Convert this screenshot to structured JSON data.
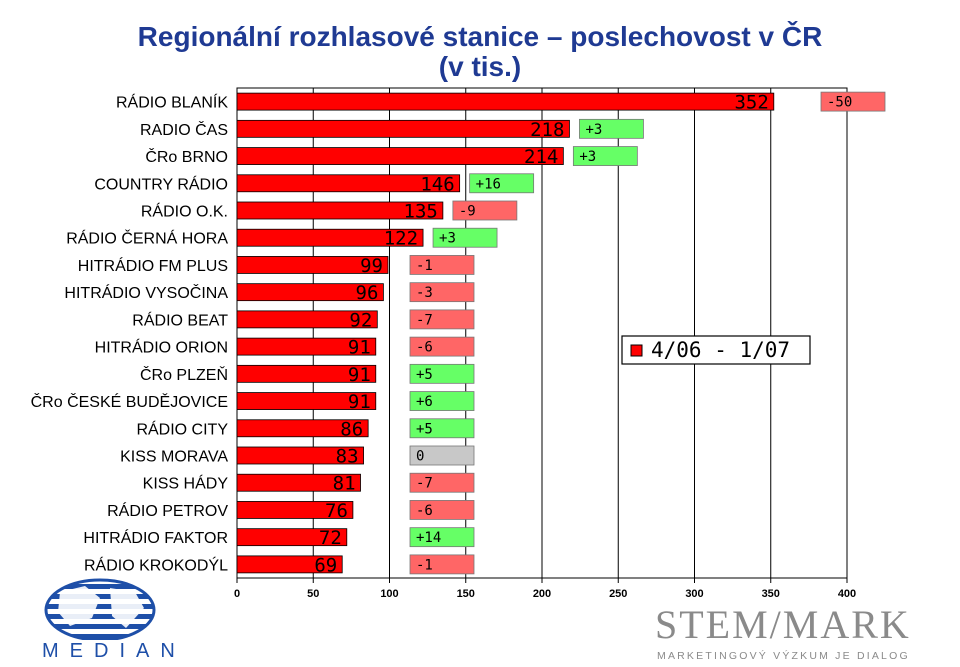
{
  "chart_data": {
    "type": "bar",
    "orientation": "horizontal",
    "title": "Regionální rozhlasové stanice – poslechovost v ČR",
    "subtitle": "(v tis.)",
    "legend": "4/06 - 1/07",
    "categories": [
      "RÁDIO BLANÍK",
      "RADIO ČAS",
      "ČRo BRNO",
      "COUNTRY RÁDIO",
      "RÁDIO O.K.",
      "RÁDIO ČERNÁ HORA",
      "HITRÁDIO FM PLUS",
      "HITRÁDIO VYSOČINA",
      "RÁDIO BEAT",
      "HITRÁDIO ORION",
      "ČRo PLZEŇ",
      "ČRo ČESKÉ BUDĚJOVICE",
      "RÁDIO CITY",
      "KISS MORAVA",
      "KISS HÁDY",
      "RÁDIO PETROV",
      "HITRÁDIO FAKTOR",
      "RÁDIO KROKODÝL"
    ],
    "values": [
      352,
      218,
      214,
      146,
      135,
      122,
      99,
      96,
      92,
      91,
      91,
      91,
      86,
      83,
      81,
      76,
      72,
      69
    ],
    "value_labels": [
      "352",
      "218",
      "214",
      "146",
      "135",
      "122",
      "99",
      "96",
      "92",
      "91",
      "91",
      "91",
      "86",
      "83",
      "81",
      "76",
      "72",
      "69"
    ],
    "changes": [
      -50,
      3,
      3,
      16,
      -9,
      3,
      -1,
      -3,
      -7,
      -6,
      5,
      6,
      5,
      0,
      -7,
      -6,
      14,
      -1
    ],
    "change_labels": [
      "-50",
      "+3",
      "+3",
      "+16",
      "-9",
      "+3",
      "-1",
      "-3",
      "-7",
      "-6",
      "+5",
      "+6",
      "+5",
      "0",
      "-7",
      "-6",
      "+14",
      "-1"
    ],
    "x_ticks": [
      "0",
      "50",
      "100",
      "150",
      "200",
      "250",
      "300",
      "350",
      "400"
    ],
    "xlim": [
      0,
      400
    ],
    "grid": true,
    "colors": {
      "bar": "#ff0000",
      "positive": "#66ff66",
      "negative": "#ff6666",
      "zero": "#c8c8c8",
      "title": "#1f3a93"
    }
  },
  "logos": {
    "median": "MEDIAN",
    "stemmark": "STEM/MARK",
    "stemmark_tagline": "MARKETINGOVÝ VÝZKUM JE DIALOG"
  }
}
